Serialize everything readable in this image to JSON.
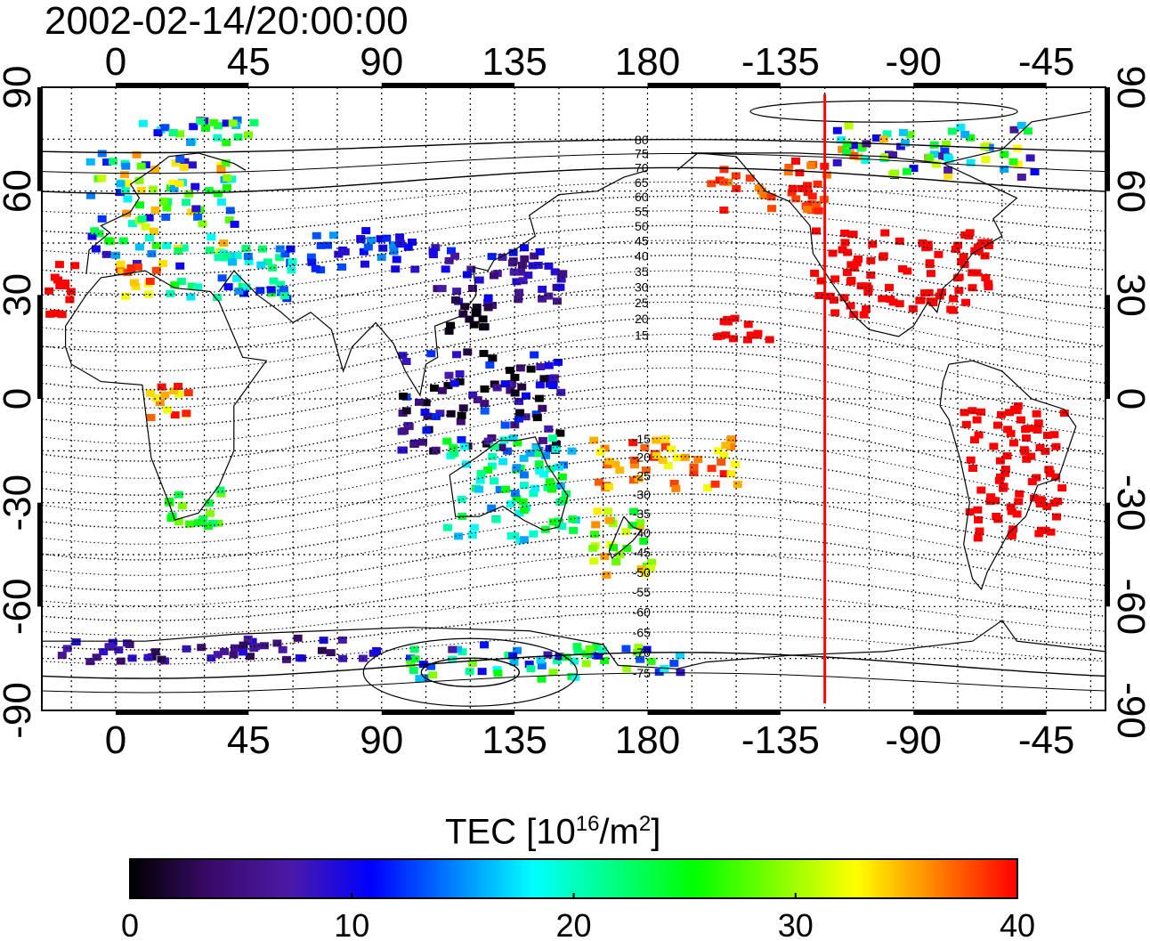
{
  "timestamp": "2002-02-14/20:00:00",
  "map": {
    "top_lon_ticks": [
      "0",
      "45",
      "90",
      "135",
      "180",
      "-135",
      "-90",
      "-45"
    ],
    "bottom_lon_ticks": [
      "0",
      "45",
      "90",
      "135",
      "180",
      "-135",
      "-90",
      "-45"
    ],
    "left_lat_ticks": [
      "90",
      "60",
      "30",
      "0",
      "-30",
      "-60",
      "-90"
    ],
    "right_lat_ticks": [
      "90",
      "60",
      "30",
      "0",
      "-30",
      "-60",
      "-90"
    ],
    "lon_range": [
      -25,
      335
    ],
    "lat_range": [
      -90,
      90
    ],
    "contour_labels_north": [
      "80",
      "75",
      "70",
      "65",
      "60",
      "55",
      "50",
      "45",
      "40",
      "35",
      "30",
      "25",
      "20",
      "15"
    ],
    "contour_labels_south": [
      "-15",
      "-20",
      "-25",
      "-30",
      "-35",
      "-40",
      "-45",
      "-50",
      "-55",
      "-60",
      "-65",
      "-70",
      "-75"
    ],
    "terminator_longitude": -120,
    "terminator_color": "#ff0000",
    "grid": "dotted"
  },
  "colorbar": {
    "title_prefix": "TEC  [10",
    "title_exp1": "16",
    "title_mid": "/m",
    "title_exp2": "2",
    "title_suffix": "]",
    "tick_labels": [
      "0",
      "10",
      "20",
      "30",
      "40"
    ],
    "range": [
      0,
      40
    ],
    "colors": [
      "#000000",
      "#3a0a6a",
      "#4a1aa8",
      "#0000ff",
      "#0080ff",
      "#00ffff",
      "#00ff80",
      "#00ff00",
      "#80ff00",
      "#ffff00",
      "#ff8000",
      "#ff0000"
    ]
  }
}
